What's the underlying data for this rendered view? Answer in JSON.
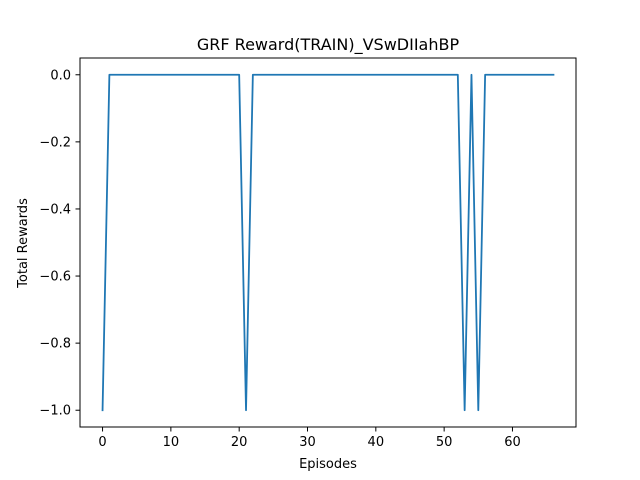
{
  "chart_data": {
    "type": "line",
    "title": "GRF Reward(TRAIN)_VSwDIIahBP",
    "xlabel": "Episodes",
    "ylabel": "Total Rewards",
    "xlim": [
      -3.3,
      69.3
    ],
    "ylim": [
      -1.05,
      0.05
    ],
    "x_ticks": [
      0,
      10,
      20,
      30,
      40,
      50,
      60
    ],
    "y_ticks": [
      0.0,
      -0.2,
      -0.4,
      -0.6,
      -0.8,
      -1.0
    ],
    "x_tick_labels": [
      "0",
      "10",
      "20",
      "30",
      "40",
      "50",
      "60"
    ],
    "y_tick_labels": [
      "0.0",
      "−0.2",
      "−0.4",
      "−0.6",
      "−0.8",
      "−1.0"
    ],
    "grid": false,
    "series": [
      {
        "color": "#1f77b4",
        "x": [
          0,
          1,
          2,
          3,
          4,
          5,
          6,
          7,
          8,
          9,
          10,
          11,
          12,
          13,
          14,
          15,
          16,
          17,
          18,
          19,
          20,
          21,
          22,
          23,
          24,
          25,
          26,
          27,
          28,
          29,
          30,
          31,
          32,
          33,
          34,
          35,
          36,
          37,
          38,
          39,
          40,
          41,
          42,
          43,
          44,
          45,
          46,
          47,
          48,
          49,
          50,
          51,
          52,
          53,
          54,
          55,
          56,
          57,
          58,
          59,
          60,
          61,
          62,
          63,
          64,
          65,
          66
        ],
        "values": [
          -1,
          0,
          0,
          0,
          0,
          0,
          0,
          0,
          0,
          0,
          0,
          0,
          0,
          0,
          0,
          0,
          0,
          0,
          0,
          0,
          0,
          -1,
          0,
          0,
          0,
          0,
          0,
          0,
          0,
          0,
          0,
          0,
          0,
          0,
          0,
          0,
          0,
          0,
          0,
          0,
          0,
          0,
          0,
          0,
          0,
          0,
          0,
          0,
          0,
          0,
          0,
          0,
          0,
          -1,
          0,
          -1,
          0,
          0,
          0,
          0,
          0,
          0,
          0,
          0,
          0,
          0,
          0
        ]
      }
    ]
  }
}
